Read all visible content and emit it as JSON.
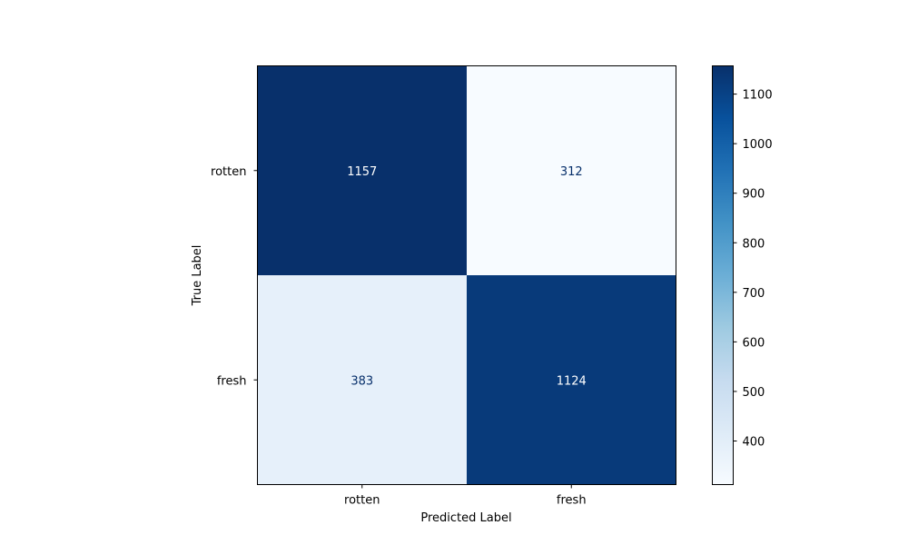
{
  "chart_data": {
    "type": "heatmap",
    "title": "",
    "xlabel": "Predicted Label",
    "ylabel": "True Label",
    "x_categories": [
      "rotten",
      "fresh"
    ],
    "y_categories": [
      "rotten",
      "fresh"
    ],
    "matrix": [
      [
        1157,
        312
      ],
      [
        383,
        1124
      ]
    ],
    "colormap": "Blues",
    "colorbar": {
      "min": 312,
      "max": 1157,
      "ticks": [
        400,
        500,
        600,
        700,
        800,
        900,
        1000,
        1100
      ]
    },
    "grid": false
  }
}
